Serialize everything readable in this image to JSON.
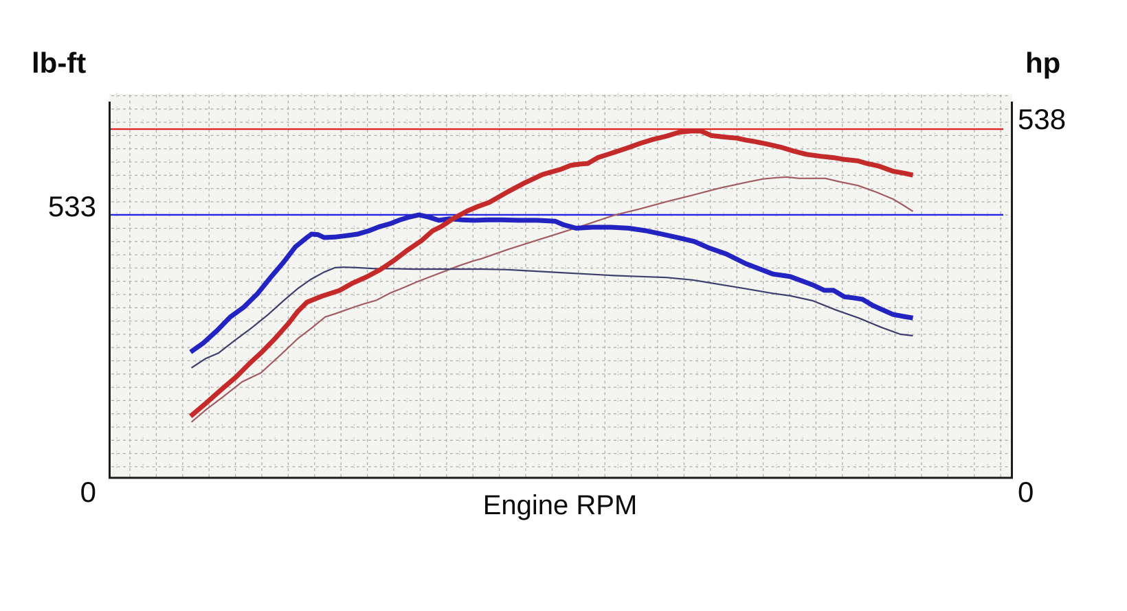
{
  "page": {
    "background": "#ffffff"
  },
  "chart_data": {
    "type": "line",
    "title": "",
    "x_axis": {
      "label": "Engine RPM",
      "tick_labels_visible": false,
      "x_scale": "normalized 0-1 across RPM axis"
    },
    "y_axis_left": {
      "title": "lb-ft",
      "unit": "lb-ft",
      "bottom_tick_label": "0",
      "peak_label": "533",
      "peak_value": 533
    },
    "y_axis_right": {
      "title": "hp",
      "unit": "hp",
      "bottom_tick_label": "0",
      "peak_label": "538",
      "peak_value": 538
    },
    "grid": {
      "on": true,
      "color": "#aeaeae",
      "minor_color": "#c3c3c3",
      "panel_background": "#f4f4f1",
      "border_color": "#1c1c1c"
    },
    "reference_lines": [
      {
        "name": "peak-torque-line",
        "unit": "lb-ft",
        "value": 533,
        "style": "solid",
        "color": "#2424e4"
      },
      {
        "name": "peak-hp-line",
        "unit": "hp",
        "value": 538,
        "style": "solid",
        "color": "#e32424"
      }
    ],
    "legend_position": "none",
    "series": [
      {
        "name": "hp-baseline",
        "unit": "hp",
        "color": "#a15c62",
        "stroke_width": 2.2,
        "points": [
          [
            0.091,
            86
          ],
          [
            0.107,
            105
          ],
          [
            0.126,
            125
          ],
          [
            0.147,
            148
          ],
          [
            0.168,
            162
          ],
          [
            0.19,
            190
          ],
          [
            0.209,
            215
          ],
          [
            0.225,
            232
          ],
          [
            0.239,
            248
          ],
          [
            0.252,
            254
          ],
          [
            0.266,
            261
          ],
          [
            0.281,
            268
          ],
          [
            0.296,
            274
          ],
          [
            0.311,
            285
          ],
          [
            0.327,
            294
          ],
          [
            0.342,
            303
          ],
          [
            0.357,
            311
          ],
          [
            0.372,
            319
          ],
          [
            0.387,
            327
          ],
          [
            0.404,
            335
          ],
          [
            0.412,
            338
          ],
          [
            0.441,
            352
          ],
          [
            0.47,
            365
          ],
          [
            0.5,
            378
          ],
          [
            0.529,
            391
          ],
          [
            0.559,
            405
          ],
          [
            0.588,
            415
          ],
          [
            0.617,
            426
          ],
          [
            0.646,
            436
          ],
          [
            0.676,
            447
          ],
          [
            0.706,
            456
          ],
          [
            0.724,
            461
          ],
          [
            0.739,
            463
          ],
          [
            0.75,
            464
          ],
          [
            0.764,
            462
          ],
          [
            0.779,
            462
          ],
          [
            0.793,
            462
          ],
          [
            0.808,
            457
          ],
          [
            0.829,
            451
          ],
          [
            0.849,
            441
          ],
          [
            0.868,
            430
          ],
          [
            0.88,
            420
          ],
          [
            0.89,
            411
          ]
        ]
      },
      {
        "name": "torque-baseline",
        "unit": "lb-ft",
        "color": "#3e3e6d",
        "stroke_width": 2.2,
        "points": [
          [
            0.091,
            223
          ],
          [
            0.107,
            242
          ],
          [
            0.121,
            253
          ],
          [
            0.138,
            277
          ],
          [
            0.157,
            303
          ],
          [
            0.176,
            331
          ],
          [
            0.193,
            359
          ],
          [
            0.209,
            384
          ],
          [
            0.223,
            402
          ],
          [
            0.238,
            417
          ],
          [
            0.25,
            426
          ],
          [
            0.26,
            427
          ],
          [
            0.275,
            426
          ],
          [
            0.294,
            424
          ],
          [
            0.313,
            424
          ],
          [
            0.336,
            423
          ],
          [
            0.358,
            423
          ],
          [
            0.381,
            423
          ],
          [
            0.412,
            423
          ],
          [
            0.441,
            422
          ],
          [
            0.47,
            419
          ],
          [
            0.5,
            416
          ],
          [
            0.529,
            413
          ],
          [
            0.559,
            410
          ],
          [
            0.588,
            408
          ],
          [
            0.617,
            406
          ],
          [
            0.646,
            401
          ],
          [
            0.676,
            392
          ],
          [
            0.706,
            383
          ],
          [
            0.734,
            374
          ],
          [
            0.754,
            369
          ],
          [
            0.779,
            359
          ],
          [
            0.805,
            340
          ],
          [
            0.83,
            324
          ],
          [
            0.855,
            305
          ],
          [
            0.876,
            291
          ],
          [
            0.89,
            288
          ]
        ]
      },
      {
        "name": "torque-main",
        "unit": "lb-ft",
        "color": "#2323c2",
        "stroke_width": 7,
        "points": [
          [
            0.09,
            255
          ],
          [
            0.104,
            273
          ],
          [
            0.119,
            298
          ],
          [
            0.134,
            326
          ],
          [
            0.149,
            346
          ],
          [
            0.164,
            373
          ],
          [
            0.18,
            409
          ],
          [
            0.193,
            437
          ],
          [
            0.206,
            468
          ],
          [
            0.218,
            486
          ],
          [
            0.224,
            494
          ],
          [
            0.231,
            493
          ],
          [
            0.238,
            487
          ],
          [
            0.25,
            488
          ],
          [
            0.263,
            491
          ],
          [
            0.275,
            494
          ],
          [
            0.288,
            501
          ],
          [
            0.299,
            509
          ],
          [
            0.311,
            515
          ],
          [
            0.322,
            523
          ],
          [
            0.333,
            529
          ],
          [
            0.343,
            533
          ],
          [
            0.353,
            529
          ],
          [
            0.365,
            522
          ],
          [
            0.377,
            525
          ],
          [
            0.39,
            523
          ],
          [
            0.404,
            522
          ],
          [
            0.419,
            523
          ],
          [
            0.435,
            523
          ],
          [
            0.454,
            522
          ],
          [
            0.474,
            522
          ],
          [
            0.494,
            520
          ],
          [
            0.503,
            513
          ],
          [
            0.517,
            506
          ],
          [
            0.535,
            508
          ],
          [
            0.555,
            508
          ],
          [
            0.575,
            506
          ],
          [
            0.594,
            501
          ],
          [
            0.612,
            494
          ],
          [
            0.632,
            486
          ],
          [
            0.648,
            479
          ],
          [
            0.664,
            466
          ],
          [
            0.683,
            454
          ],
          [
            0.705,
            434
          ],
          [
            0.735,
            413
          ],
          [
            0.754,
            408
          ],
          [
            0.779,
            391
          ],
          [
            0.792,
            380
          ],
          [
            0.802,
            380
          ],
          [
            0.814,
            367
          ],
          [
            0.823,
            365
          ],
          [
            0.834,
            362
          ],
          [
            0.846,
            349
          ],
          [
            0.857,
            340
          ],
          [
            0.868,
            331
          ],
          [
            0.88,
            327
          ],
          [
            0.89,
            324
          ]
        ]
      },
      {
        "name": "hp-main",
        "unit": "hp",
        "color": "#c42a29",
        "stroke_width": 7,
        "points": [
          [
            0.09,
            95
          ],
          [
            0.107,
            115
          ],
          [
            0.124,
            136
          ],
          [
            0.14,
            155
          ],
          [
            0.155,
            176
          ],
          [
            0.169,
            194
          ],
          [
            0.183,
            214
          ],
          [
            0.199,
            239
          ],
          [
            0.209,
            257
          ],
          [
            0.219,
            271
          ],
          [
            0.228,
            276
          ],
          [
            0.235,
            280
          ],
          [
            0.244,
            284
          ],
          [
            0.255,
            289
          ],
          [
            0.269,
            300
          ],
          [
            0.285,
            310
          ],
          [
            0.3,
            321
          ],
          [
            0.315,
            335
          ],
          [
            0.33,
            351
          ],
          [
            0.346,
            366
          ],
          [
            0.358,
            381
          ],
          [
            0.368,
            388
          ],
          [
            0.381,
            400
          ],
          [
            0.397,
            412
          ],
          [
            0.409,
            419
          ],
          [
            0.421,
            425
          ],
          [
            0.441,
            441
          ],
          [
            0.46,
            455
          ],
          [
            0.48,
            468
          ],
          [
            0.5,
            476
          ],
          [
            0.511,
            482
          ],
          [
            0.521,
            484
          ],
          [
            0.53,
            485
          ],
          [
            0.541,
            494
          ],
          [
            0.559,
            502
          ],
          [
            0.574,
            509
          ],
          [
            0.588,
            516
          ],
          [
            0.602,
            522
          ],
          [
            0.617,
            527
          ],
          [
            0.631,
            533
          ],
          [
            0.644,
            535
          ],
          [
            0.655,
            535
          ],
          [
            0.667,
            528
          ],
          [
            0.68,
            526
          ],
          [
            0.687,
            525
          ],
          [
            0.695,
            524
          ],
          [
            0.705,
            521
          ],
          [
            0.714,
            519
          ],
          [
            0.728,
            515
          ],
          [
            0.744,
            510
          ],
          [
            0.758,
            504
          ],
          [
            0.772,
            499
          ],
          [
            0.788,
            496
          ],
          [
            0.802,
            494
          ],
          [
            0.815,
            491
          ],
          [
            0.829,
            489
          ],
          [
            0.839,
            485
          ],
          [
            0.852,
            481
          ],
          [
            0.868,
            473
          ],
          [
            0.88,
            470
          ],
          [
            0.89,
            467
          ]
        ]
      }
    ]
  }
}
